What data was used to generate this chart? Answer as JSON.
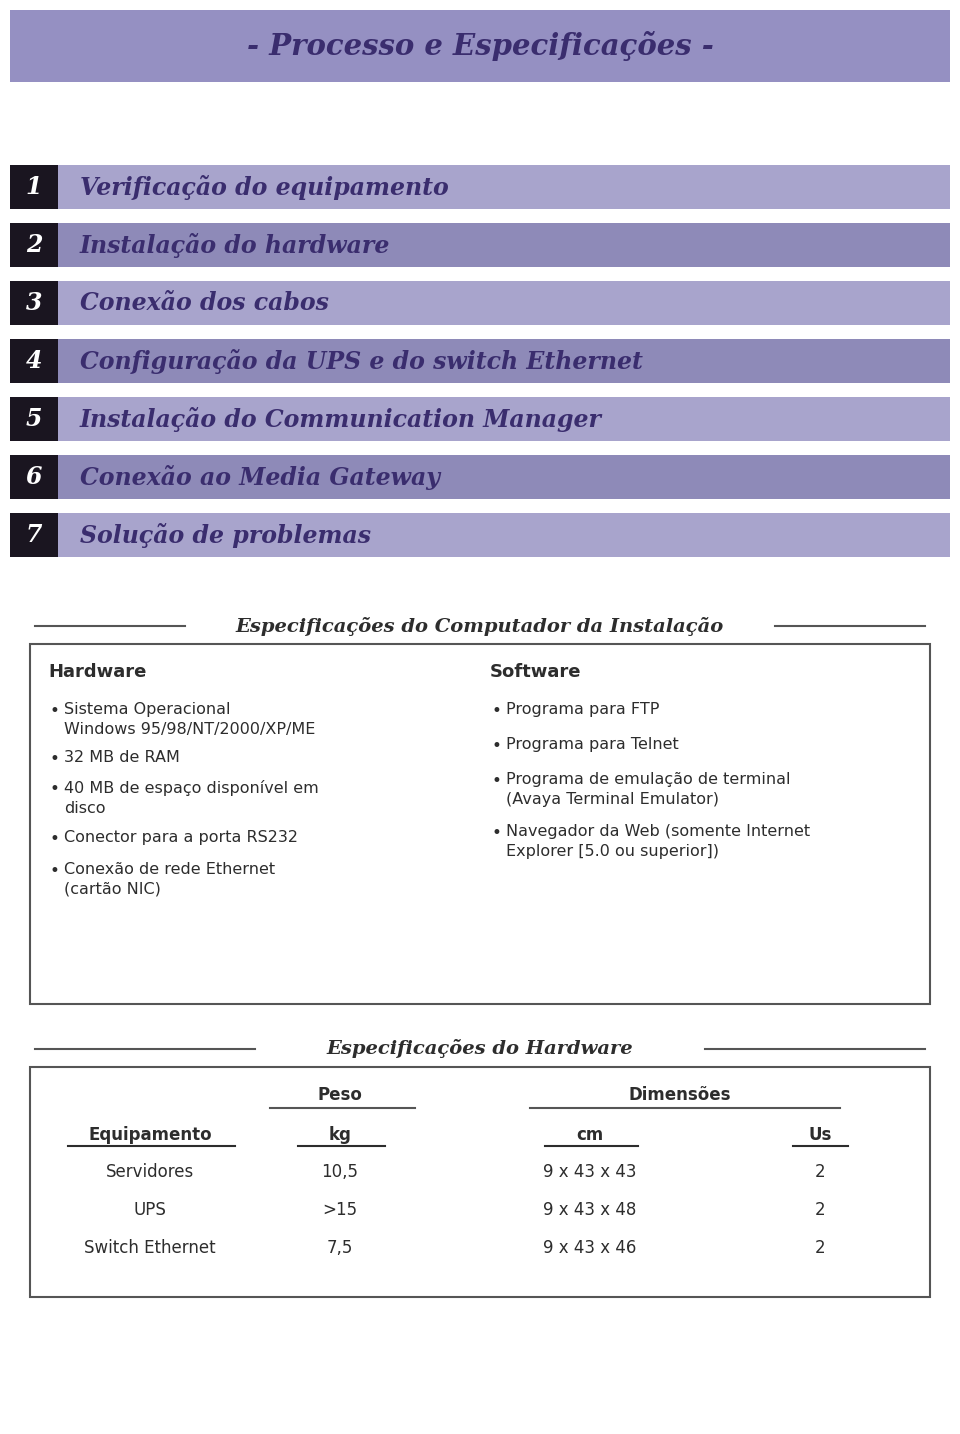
{
  "title": "- Processo e Especificações -",
  "title_bg": "#9590c2",
  "title_color": "#3a2d6e",
  "steps": [
    {
      "num": "1",
      "text": "Verificação do equipamento"
    },
    {
      "num": "2",
      "text": "Instalação do hardware"
    },
    {
      "num": "3",
      "text": "Conexão dos cabos"
    },
    {
      "num": "4",
      "text": "Configuração da UPS e do switch Ethernet"
    },
    {
      "num": "5",
      "text": "Instalação do Communication Manager"
    },
    {
      "num": "6",
      "text": "Conexão ao Media Gateway"
    },
    {
      "num": "7",
      "text": "Solução de problemas"
    }
  ],
  "step_bg_odd": "#a8a4cc",
  "step_bg_even": "#8e8ab8",
  "step_num_bg": "#1a1520",
  "step_text_color": "#3a2d6e",
  "box1_title": "Especificações do Computador da Instalação",
  "box1_hw_title": "Hardware",
  "box1_hw_items": [
    "Sistema Operacional\nWindows 95/98/NT/2000/XP/ME",
    "32 MB de RAM",
    "40 MB de espaço disponível em\ndisco",
    "Conector para a porta RS232",
    "Conexão de rede Ethernet\n(cartão NIC)"
  ],
  "box1_sw_title": "Software",
  "box1_sw_items": [
    "Programa para FTP",
    "Programa para Telnet",
    "Programa de emulação de terminal\n(Avaya Terminal Emulator)",
    "Navegador da Web (somente Internet\nExplorer [5.0 ou superior])"
  ],
  "box2_title": "Especificações do Hardware",
  "box2_rows": [
    [
      "Servidores",
      "10,5",
      "9 x 43 x 43",
      "2"
    ],
    [
      "UPS",
      ">15",
      "9 x 43 x 48",
      "2"
    ],
    [
      "Switch Ethernet",
      "7,5",
      "9 x 43 x 46",
      "2"
    ]
  ],
  "bg_color": "#ffffff",
  "text_color": "#2d2d2d",
  "border_color": "#555555"
}
